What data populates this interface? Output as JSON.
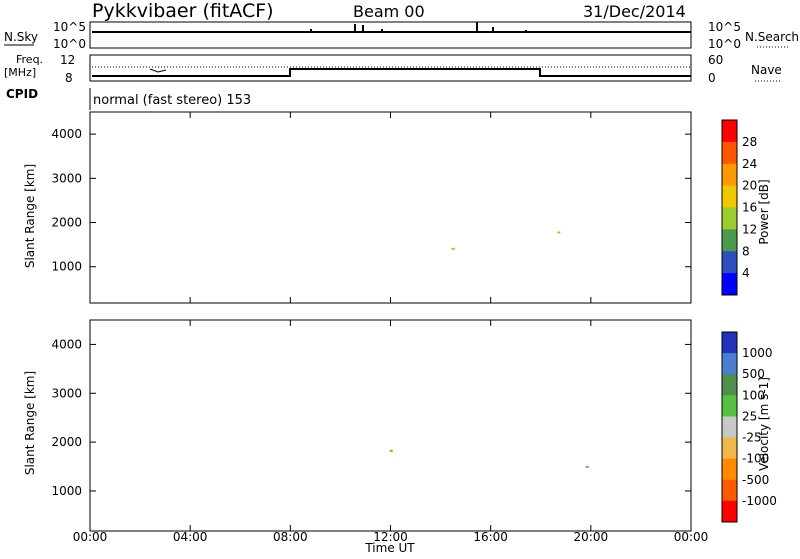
{
  "header": {
    "station": "Pykkvibaer (fitACF)",
    "beam": "Beam 00",
    "date": "31/Dec/2014"
  },
  "top_panels": {
    "nsky_label": "N.Sky",
    "nsearch_label": "N.Search",
    "nsky_ticks": [
      "10^5",
      "10^0"
    ],
    "nsky_right_ticks": [
      "10^5",
      "10^0"
    ],
    "freq_label": "Freq.",
    "freq_unit": "[MHz]",
    "freq_ticks": [
      "12",
      "8"
    ],
    "nave_label": "Nave",
    "nave_ticks": [
      "60",
      "0"
    ],
    "cpid_label": "CPID",
    "cpid_value": "normal (fast stereo) 153"
  },
  "time_axis": {
    "label": "Time UT",
    "ticks": [
      "00:00",
      "04:00",
      "08:00",
      "12:00",
      "16:00",
      "20:00",
      "00:00"
    ],
    "range_hours": [
      0,
      24
    ]
  },
  "chart_data": [
    {
      "type": "heatmap",
      "parameter": "Power",
      "ylabel": "Slant Range [km]",
      "ylim": [
        180,
        4500
      ],
      "yticks": [
        "1000",
        "2000",
        "3000",
        "4000"
      ],
      "colorbar_label": "Power [dB]",
      "colorbar_ticks": [
        "28",
        "24",
        "20",
        "16",
        "12",
        "8",
        "4"
      ],
      "colorbar_colors": [
        "#ff0000",
        "#ff5500",
        "#ff9900",
        "#f0c800",
        "#9ccc2e",
        "#4c9a4c",
        "#2c4ec0",
        "#0000ff"
      ]
    },
    {
      "type": "heatmap",
      "parameter": "Velocity",
      "ylabel": "Slant Range [km]",
      "ylim": [
        180,
        4500
      ],
      "yticks": [
        "1000",
        "2000",
        "3000",
        "4000"
      ],
      "colorbar_label": "Velocity [m s-1]",
      "colorbar_ticks": [
        "1000",
        "500",
        "100",
        "25",
        "-25",
        "-100",
        "-500",
        "-1000"
      ],
      "colorbar_colors": [
        "#2233bb",
        "#4a7fcf",
        "#4e8f4e",
        "#58c040",
        "#c8c8c8",
        "#f0b84b",
        "#ff8a00",
        "#ff5a00",
        "#ff0000"
      ]
    }
  ]
}
